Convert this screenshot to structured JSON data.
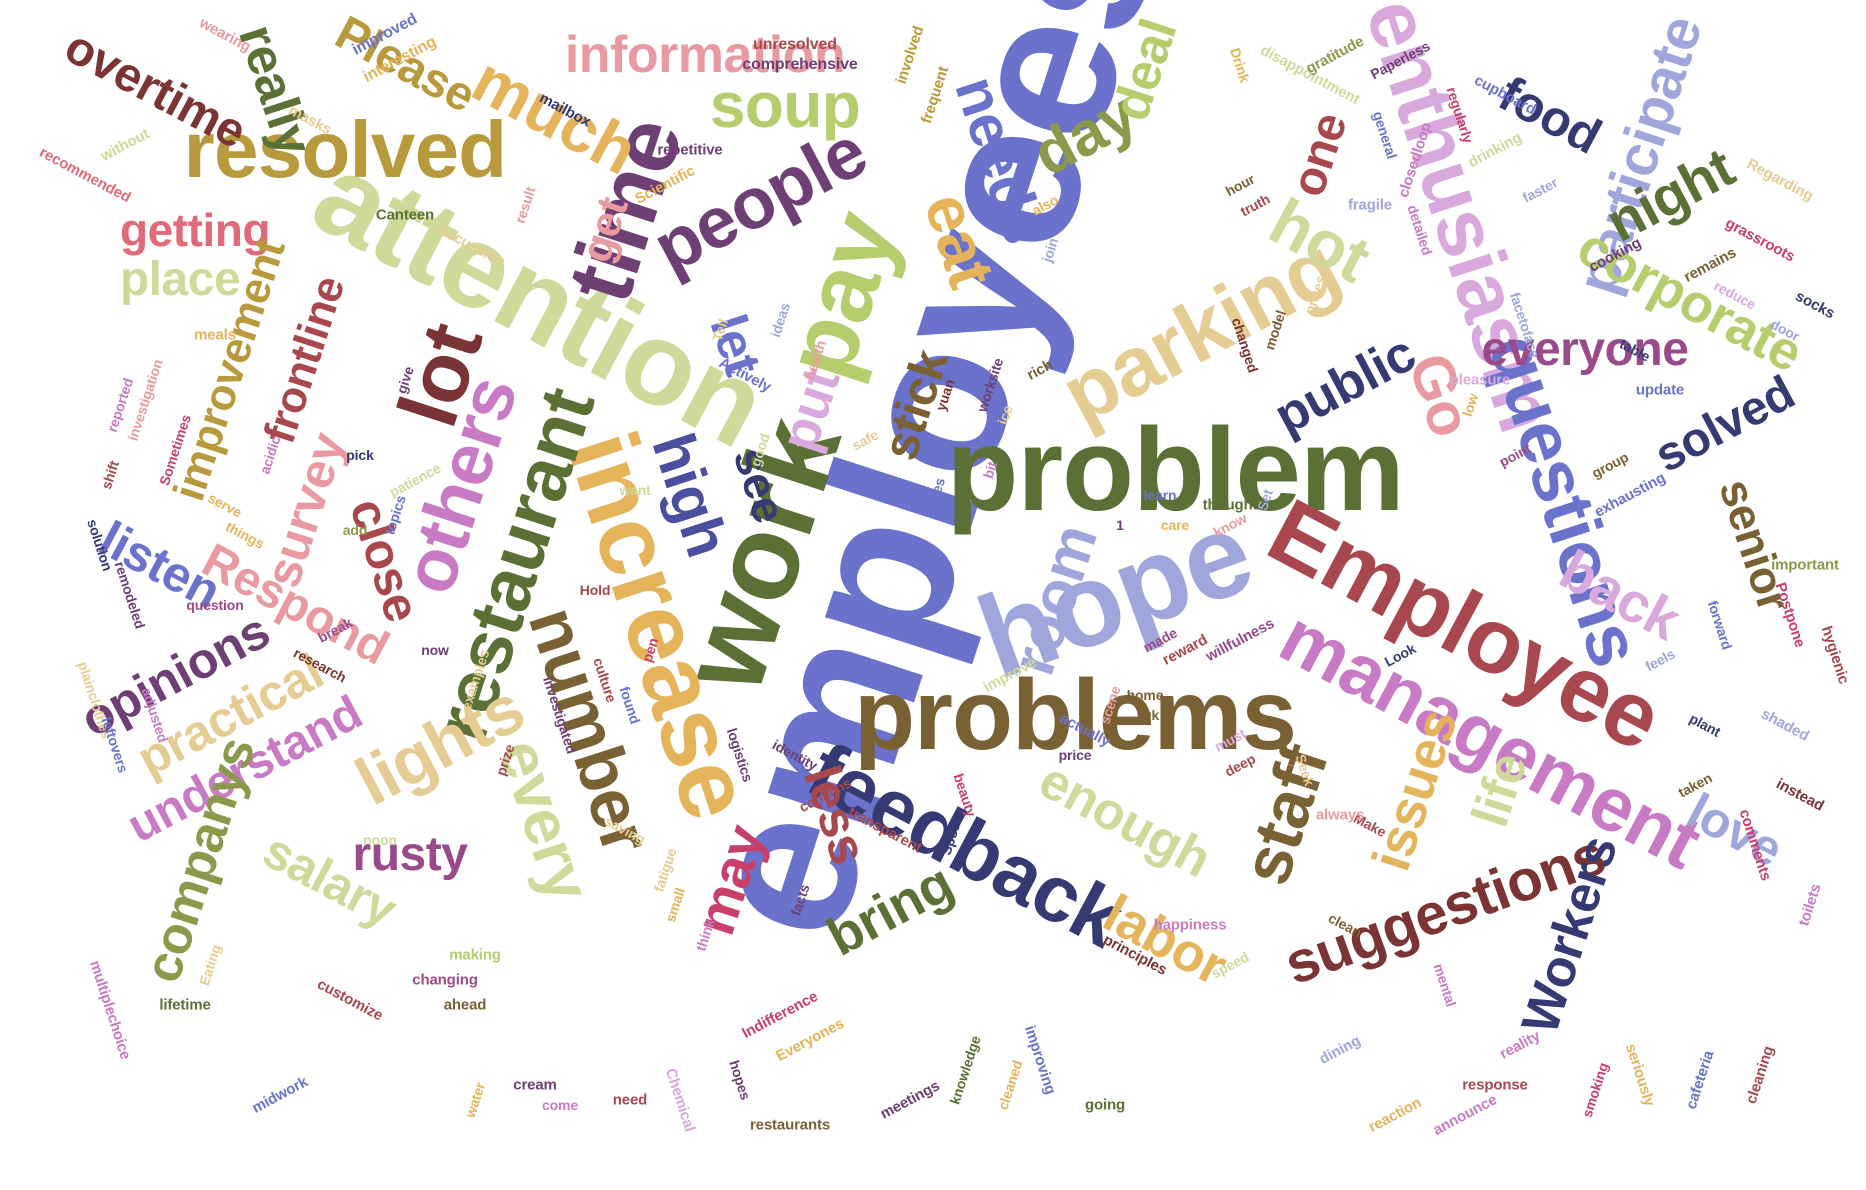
{
  "cloud": {
    "words": [
      {
        "text": "employees",
        "color": "#6b72cc"
      },
      {
        "text": "problem",
        "color": "#5a7035"
      },
      {
        "text": "attention",
        "color": "#cfd99a"
      },
      {
        "text": "work",
        "color": "#5a7035"
      },
      {
        "text": "problems",
        "color": "#7a6134"
      },
      {
        "text": "hope",
        "color": "#9fa6dc"
      },
      {
        "text": "Employee",
        "color": "#a8484e"
      },
      {
        "text": "management",
        "color": "#c87bc4"
      },
      {
        "text": "resolved",
        "color": "#b89a3c"
      },
      {
        "text": "time",
        "color": "#6e3f74"
      },
      {
        "text": "pay",
        "color": "#b6cd6d"
      },
      {
        "text": "enthusiasm",
        "color": "#d9a8dc"
      },
      {
        "text": "increase",
        "color": "#e5b35a"
      },
      {
        "text": "restaurant",
        "color": "#5a7035"
      },
      {
        "text": "feedback",
        "color": "#353a72"
      },
      {
        "text": "parking",
        "color": "#e5cc92"
      },
      {
        "text": "questions",
        "color": "#6b72cc"
      },
      {
        "text": "lot",
        "color": "#7a3434"
      },
      {
        "text": "number",
        "color": "#7a6134"
      },
      {
        "text": "people",
        "color": "#6e3f74"
      },
      {
        "text": "information",
        "color": "#e89aa0"
      },
      {
        "text": "much",
        "color": "#e5b35a"
      },
      {
        "text": "soup",
        "color": "#b6cd6d"
      },
      {
        "text": "others",
        "color": "#c87bc4"
      },
      {
        "text": "lights",
        "color": "#e5cc92"
      },
      {
        "text": "every",
        "color": "#cfd99a"
      },
      {
        "text": "overtime",
        "color": "#7a3434"
      },
      {
        "text": "really",
        "color": "#5a7035"
      },
      {
        "text": "Please",
        "color": "#b89a3c"
      },
      {
        "text": "participate",
        "color": "#9fa6dc"
      },
      {
        "text": "corporate",
        "color": "#b6cd6d"
      },
      {
        "text": "food",
        "color": "#353a72"
      },
      {
        "text": "night",
        "color": "#5a7035"
      },
      {
        "text": "eat",
        "color": "#e5b35a"
      },
      {
        "text": "needs",
        "color": "#6b72cc"
      },
      {
        "text": "day",
        "color": "#8b9a4a"
      },
      {
        "text": "deal",
        "color": "#b6cd6d"
      },
      {
        "text": "one",
        "color": "#a8484e"
      },
      {
        "text": "hot",
        "color": "#cfd99a"
      },
      {
        "text": "everyone",
        "color": "#9a4a8a"
      },
      {
        "text": "public",
        "color": "#353a72"
      },
      {
        "text": "Go",
        "color": "#e89aa0"
      },
      {
        "text": "solved",
        "color": "#353a72"
      },
      {
        "text": "senior",
        "color": "#7a6134"
      },
      {
        "text": "back",
        "color": "#d9a8dc"
      },
      {
        "text": "room",
        "color": "#9fa6dc"
      },
      {
        "text": "staff",
        "color": "#7a6134"
      },
      {
        "text": "issues",
        "color": "#e5b35a"
      },
      {
        "text": "life",
        "color": "#cfd99a"
      },
      {
        "text": "love",
        "color": "#9fa6dc"
      },
      {
        "text": "suggestions",
        "color": "#7a3434"
      },
      {
        "text": "Workers",
        "color": "#353a72"
      },
      {
        "text": "enough",
        "color": "#cfd99a"
      },
      {
        "text": "labor",
        "color": "#e5b35a"
      },
      {
        "text": "bring",
        "color": "#5a7035"
      },
      {
        "text": "less",
        "color": "#a8484e"
      },
      {
        "text": "may",
        "color": "#c8406a"
      },
      {
        "text": "high",
        "color": "#4a4fa0"
      },
      {
        "text": "see",
        "color": "#353a72"
      },
      {
        "text": "put",
        "color": "#d9a8dc"
      },
      {
        "text": "stick",
        "color": "#7a6134"
      },
      {
        "text": "let",
        "color": "#6b72cc"
      },
      {
        "text": "get",
        "color": "#e89aa0"
      },
      {
        "text": "getting",
        "color": "#e06a7a"
      },
      {
        "text": "place",
        "color": "#cfd99a"
      },
      {
        "text": "improvement",
        "color": "#b89a3c"
      },
      {
        "text": "frontline",
        "color": "#a8484e"
      },
      {
        "text": "survey",
        "color": "#e89aa0"
      },
      {
        "text": "close",
        "color": "#a8484e"
      },
      {
        "text": "Respond",
        "color": "#e89aa0"
      },
      {
        "text": "listen",
        "color": "#6b72cc"
      },
      {
        "text": "opinions",
        "color": "#6e3f74"
      },
      {
        "text": "practical",
        "color": "#e5cc92"
      },
      {
        "text": "understand",
        "color": "#c87bc4"
      },
      {
        "text": "companys",
        "color": "#8b9a4a"
      },
      {
        "text": "salary",
        "color": "#cfd99a"
      },
      {
        "text": "rusty",
        "color": "#9a4a8a"
      },
      {
        "text": "improved",
        "color": "#6b72cc"
      },
      {
        "text": "interesting",
        "color": "#e5b35a"
      },
      {
        "text": "wearing",
        "color": "#e89aa0"
      },
      {
        "text": "masks",
        "color": "#e5cc92"
      },
      {
        "text": "without",
        "color": "#cfd99a"
      },
      {
        "text": "recommended",
        "color": "#e06a7a"
      },
      {
        "text": "mailbox",
        "color": "#353a72"
      },
      {
        "text": "unresolved",
        "color": "#a8484e"
      },
      {
        "text": "comprehensive",
        "color": "#6e3f74"
      },
      {
        "text": "involved",
        "color": "#b89a3c"
      },
      {
        "text": "frequent",
        "color": "#b89a3c"
      },
      {
        "text": "Drink",
        "color": "#e5b35a"
      },
      {
        "text": "disappointment",
        "color": "#cfd99a"
      },
      {
        "text": "gratitude",
        "color": "#8b9a4a"
      },
      {
        "text": "Paperless",
        "color": "#6e3f74"
      },
      {
        "text": "cupboard",
        "color": "#6b72cc"
      },
      {
        "text": "regularly",
        "color": "#c8406a"
      },
      {
        "text": "closedloop",
        "color": "#c87bc4"
      },
      {
        "text": "drinking",
        "color": "#cfd99a"
      },
      {
        "text": "repetitive",
        "color": "#6e3f74"
      },
      {
        "text": "Scientific",
        "color": "#e5b35a"
      },
      {
        "text": "result",
        "color": "#e89aa0"
      },
      {
        "text": "Canteen",
        "color": "#5a7035"
      },
      {
        "text": "discussion",
        "color": "#e5cc92"
      },
      {
        "text": "also",
        "color": "#e5b35a"
      },
      {
        "text": "join",
        "color": "#9fa6dc"
      },
      {
        "text": "hour",
        "color": "#7a6134"
      },
      {
        "text": "truth",
        "color": "#a8484e"
      },
      {
        "text": "fragile",
        "color": "#9fa6dc"
      },
      {
        "text": "general",
        "color": "#6b72cc"
      },
      {
        "text": "detailed",
        "color": "#c87bc4"
      },
      {
        "text": "faster",
        "color": "#9fa6dc"
      },
      {
        "text": "cooking",
        "color": "#6e3f74"
      },
      {
        "text": "Regarding",
        "color": "#e5cc92"
      },
      {
        "text": "remains",
        "color": "#7a6134"
      },
      {
        "text": "grassroots",
        "color": "#c8406a"
      },
      {
        "text": "socks",
        "color": "#353a72"
      },
      {
        "text": "reduce",
        "color": "#d9a8dc"
      },
      {
        "text": "door",
        "color": "#9fa6dc"
      },
      {
        "text": "table",
        "color": "#353a72"
      },
      {
        "text": "update",
        "color": "#6b72cc"
      },
      {
        "text": "facetoface",
        "color": "#9fa6dc"
      },
      {
        "text": "pleasure",
        "color": "#d9a8dc"
      },
      {
        "text": "low",
        "color": "#e5b35a"
      },
      {
        "text": "point",
        "color": "#9a4a8a"
      },
      {
        "text": "group",
        "color": "#7a6134"
      },
      {
        "text": "exhausting",
        "color": "#6b72cc"
      },
      {
        "text": "important",
        "color": "#8b9a4a"
      },
      {
        "text": "Postpone",
        "color": "#c8406a"
      },
      {
        "text": "hygienic",
        "color": "#a8484e"
      },
      {
        "text": "forward",
        "color": "#6b72cc"
      },
      {
        "text": "shaded",
        "color": "#9fa6dc"
      },
      {
        "text": "plant",
        "color": "#353a72"
      },
      {
        "text": "instead",
        "color": "#7a3434"
      },
      {
        "text": "taken",
        "color": "#7a6134"
      },
      {
        "text": "comments",
        "color": "#c8406a"
      },
      {
        "text": "toilets",
        "color": "#c87bc4"
      },
      {
        "text": "feels",
        "color": "#9fa6dc"
      },
      {
        "text": "Look",
        "color": "#353a72"
      },
      {
        "text": "Seek",
        "color": "#e5cc92"
      },
      {
        "text": "Make",
        "color": "#a8484e"
      },
      {
        "text": "always",
        "color": "#e89aa0"
      },
      {
        "text": "clean",
        "color": "#7a6134"
      },
      {
        "text": "happiness",
        "color": "#c87bc4"
      },
      {
        "text": "principles",
        "color": "#7a3434"
      },
      {
        "text": "speed",
        "color": "#cfd99a"
      },
      {
        "text": "mental",
        "color": "#c87bc4"
      },
      {
        "text": "dining",
        "color": "#9fa6dc"
      },
      {
        "text": "reality",
        "color": "#c87bc4"
      },
      {
        "text": "response",
        "color": "#a8484e"
      },
      {
        "text": "reaction",
        "color": "#e5b35a"
      },
      {
        "text": "announce",
        "color": "#c87bc4"
      },
      {
        "text": "smoking",
        "color": "#c8406a"
      },
      {
        "text": "seriously",
        "color": "#e5b35a"
      },
      {
        "text": "cafeteria",
        "color": "#6b72cc"
      },
      {
        "text": "cleaning",
        "color": "#a8484e"
      },
      {
        "text": "thought",
        "color": "#5a7035"
      },
      {
        "text": "know",
        "color": "#e89aa0"
      },
      {
        "text": "Set",
        "color": "#9fa6dc"
      },
      {
        "text": "care",
        "color": "#e5b35a"
      },
      {
        "text": "learn",
        "color": "#6b72cc"
      },
      {
        "text": "willfulness",
        "color": "#9a4a8a"
      },
      {
        "text": "reward",
        "color": "#a8484e"
      },
      {
        "text": "made",
        "color": "#9a4a8a"
      },
      {
        "text": "home",
        "color": "#7a6134"
      },
      {
        "text": "Ok",
        "color": "#7a6134"
      },
      {
        "text": "must",
        "color": "#d9a8dc"
      },
      {
        "text": "deep",
        "color": "#a8484e"
      },
      {
        "text": "price",
        "color": "#6e3f74"
      },
      {
        "text": "actually",
        "color": "#6b72cc"
      },
      {
        "text": "scene",
        "color": "#e89aa0"
      },
      {
        "text": "improve",
        "color": "#cfd99a"
      },
      {
        "text": "beauty",
        "color": "#c8406a"
      },
      {
        "text": "ice",
        "color": "#e5cc92"
      },
      {
        "text": "rich",
        "color": "#7a6134"
      },
      {
        "text": "worksite",
        "color": "#6e3f74"
      },
      {
        "text": "yuan",
        "color": "#7a3434"
      },
      {
        "text": "bit",
        "color": "#c87bc4"
      },
      {
        "text": "gives",
        "color": "#6b72cc"
      },
      {
        "text": "safe",
        "color": "#e5cc92"
      },
      {
        "text": "good",
        "color": "#cfd99a"
      },
      {
        "text": "acidic",
        "color": "#c87bc4"
      },
      {
        "text": "want",
        "color": "#cfd99a"
      },
      {
        "text": "Actively",
        "color": "#6b72cc"
      },
      {
        "text": "health",
        "color": "#e89aa0"
      },
      {
        "text": "ideas",
        "color": "#9fa6dc"
      },
      {
        "text": "Tell",
        "color": "#e5cc92"
      },
      {
        "text": "prizes",
        "color": "#e5cc92"
      },
      {
        "text": "model",
        "color": "#7a6134"
      },
      {
        "text": "changed",
        "color": "#7a3434"
      },
      {
        "text": "meals",
        "color": "#e5b35a"
      },
      {
        "text": "give",
        "color": "#6e3f74"
      },
      {
        "text": "reported",
        "color": "#c87bc4"
      },
      {
        "text": "investigation",
        "color": "#e89aa0"
      },
      {
        "text": "Sometimes",
        "color": "#c8406a"
      },
      {
        "text": "shift",
        "color": "#a8484e"
      },
      {
        "text": "pick",
        "color": "#353a72"
      },
      {
        "text": "patience",
        "color": "#cfd99a"
      },
      {
        "text": "serve",
        "color": "#e5b35a"
      },
      {
        "text": "topics",
        "color": "#6b72cc"
      },
      {
        "text": "add",
        "color": "#8b9a4a"
      },
      {
        "text": "things",
        "color": "#e5b35a"
      },
      {
        "text": "solution",
        "color": "#353a72"
      },
      {
        "text": "remodeled",
        "color": "#6e3f74"
      },
      {
        "text": "question",
        "color": "#9a4a8a"
      },
      {
        "text": "Hold",
        "color": "#a8484e"
      },
      {
        "text": "break",
        "color": "#9a4a8a"
      },
      {
        "text": "now",
        "color": "#6e3f74"
      },
      {
        "text": "research",
        "color": "#7a3434"
      },
      {
        "text": "examples",
        "color": "#e5cc92"
      },
      {
        "text": "culture",
        "color": "#a8484e"
      },
      {
        "text": "found",
        "color": "#6b72cc"
      },
      {
        "text": "investigated",
        "color": "#6e3f74"
      },
      {
        "text": "pen",
        "color": "#c8406a"
      },
      {
        "text": "plainclothes",
        "color": "#e5cc92"
      },
      {
        "text": "adjusted",
        "color": "#c87bc4"
      },
      {
        "text": "leftovers",
        "color": "#6b72cc"
      },
      {
        "text": "prize",
        "color": "#a8484e"
      },
      {
        "text": "logistics",
        "color": "#6e3f74"
      },
      {
        "text": "identity",
        "color": "#6e3f74"
      },
      {
        "text": "contains",
        "color": "#a8484e"
      },
      {
        "text": "transparent",
        "color": "#a8484e"
      },
      {
        "text": "Spot",
        "color": "#353a72"
      },
      {
        "text": "noon",
        "color": "#cfd99a"
      },
      {
        "text": "saving",
        "color": "#e5cc92"
      },
      {
        "text": "fatigue",
        "color": "#e5cc92"
      },
      {
        "text": "small",
        "color": "#e5b35a"
      },
      {
        "text": "think",
        "color": "#c87bc4"
      },
      {
        "text": "facts",
        "color": "#6e3f74"
      },
      {
        "text": "Indifference",
        "color": "#c8406a"
      },
      {
        "text": "Everyones",
        "color": "#e5b35a"
      },
      {
        "text": "making",
        "color": "#b6cd6d"
      },
      {
        "text": "changing",
        "color": "#9a4a8a"
      },
      {
        "text": "ahead",
        "color": "#7a6134"
      },
      {
        "text": "customize",
        "color": "#a8484e"
      },
      {
        "text": "Eating",
        "color": "#e5cc92"
      },
      {
        "text": "multiplechoice",
        "color": "#c87bc4"
      },
      {
        "text": "lifetime",
        "color": "#5a7035"
      },
      {
        "text": "midwork",
        "color": "#6b72cc"
      },
      {
        "text": "water",
        "color": "#e5b35a"
      },
      {
        "text": "cream",
        "color": "#6e3f74"
      },
      {
        "text": "come",
        "color": "#c87bc4"
      },
      {
        "text": "need",
        "color": "#a8484e"
      },
      {
        "text": "Chemical",
        "color": "#d9a8dc"
      },
      {
        "text": "hopes",
        "color": "#6e3f74"
      },
      {
        "text": "restaurants",
        "color": "#7a6134"
      },
      {
        "text": "meetings",
        "color": "#6e3f74"
      },
      {
        "text": "knowledge",
        "color": "#5a7035"
      },
      {
        "text": "cleaned",
        "color": "#e5b35a"
      },
      {
        "text": "improving",
        "color": "#6b72cc"
      },
      {
        "text": "going",
        "color": "#5a7035"
      },
      {
        "text": "1",
        "color": "#6e3f74"
      }
    ]
  }
}
